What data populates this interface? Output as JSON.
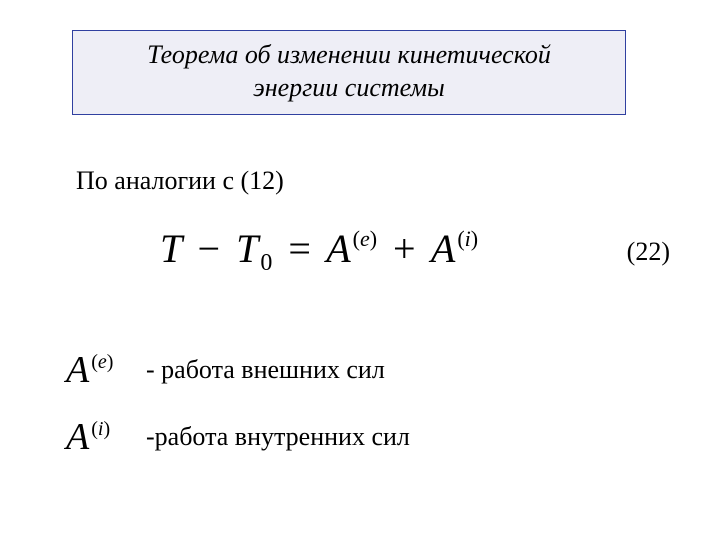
{
  "title": {
    "line1": "Теорема об изменении кинетической",
    "line2": "энергии системы"
  },
  "intro": "По аналогии с (12)",
  "equation": {
    "T": "T",
    "minus": "−",
    "T0_base": "T",
    "T0_sub": "0",
    "eq": "=",
    "A1_base": "A",
    "A1_sup_open": "(",
    "A1_sup_letter": "e",
    "A1_sup_close": ")",
    "plus": "+",
    "A2_base": "A",
    "A2_sup_open": "(",
    "A2_sup_letter": "i",
    "A2_sup_close": ")",
    "number": "(22)"
  },
  "defs": {
    "ext": {
      "sym_base": "A",
      "sym_sup_open": "(",
      "sym_sup_letter": "e",
      "sym_sup_close": ")",
      "text": "- работа внешних сил"
    },
    "int": {
      "sym_base": "A",
      "sym_sup_open": "(",
      "sym_sup_letter": "i",
      "sym_sup_close": ")",
      "text": "-работа внутренних сил"
    }
  },
  "style": {
    "background": "#ffffff",
    "title_border": "#3040a0",
    "title_bg": "#eeeef6",
    "text_color": "#000000",
    "title_fontsize": 26,
    "body_fontsize": 26,
    "equation_fontsize": 40,
    "symbol_fontsize": 38
  }
}
